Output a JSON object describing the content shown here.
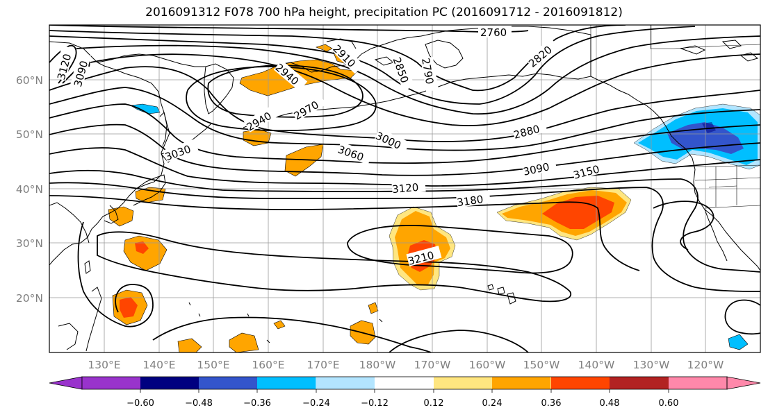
{
  "title": "2016091312 F078 700 hPa height, precipitation PC (2016091712 - 2016091812)",
  "lat_labels": [
    "60°N",
    "50°N",
    "40°N",
    "30°N",
    "20°N"
  ],
  "lon_labels": [
    "130°E",
    "140°E",
    "150°E",
    "160°E",
    "170°E",
    "180°W",
    "170°W",
    "160°W",
    "150°W",
    "140°W",
    "130°W",
    "120°W"
  ],
  "contour_labels": [
    "2760",
    "2820",
    "2850",
    "2790",
    "2910",
    "2940",
    "2970",
    "2880",
    "3000",
    "3030",
    "3060",
    "3090",
    "3150",
    "3120",
    "3180",
    "3210",
    "3120",
    "3090",
    "2940"
  ],
  "colorbar": {
    "tick_labels": [
      "−0.60",
      "−0.48",
      "−0.36",
      "−0.24",
      "−0.12",
      "0.12",
      "0.24",
      "0.36",
      "0.48",
      "0.60"
    ],
    "colors": [
      "#9933cc",
      "#000080",
      "#3355cc",
      "#00bfff",
      "#b3e5ff",
      "#ffffff",
      "#ffe680",
      "#ffa500",
      "#ff4500",
      "#b22222",
      "#ff88aa"
    ]
  },
  "colors": {
    "contour": "#000000",
    "coast": "#000000",
    "grid": "#999999",
    "frame": "#000000"
  }
}
